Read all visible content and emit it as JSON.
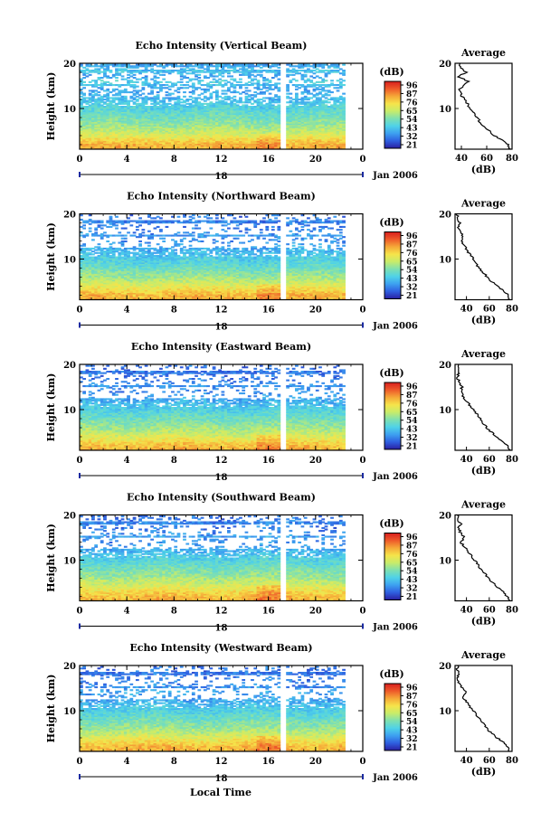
{
  "figure": {
    "footer_label": "Local Time",
    "date_label": "Jan 2006",
    "colorbar_unit": "(dB)",
    "colorbar_ticks": [
      "96",
      "87",
      "76",
      "65",
      "54",
      "43",
      "32",
      "21"
    ],
    "colorscale": [
      "#2a1fa0",
      "#2f5fe0",
      "#3da0f0",
      "#4fd2e8",
      "#7fe0b0",
      "#c8ec6a",
      "#f6e44a",
      "#f5a838",
      "#ee5a2a",
      "#d81e1e"
    ],
    "x_ticks": [
      "0",
      "4",
      "8",
      "12",
      "16",
      "20",
      "0"
    ],
    "day_label": "18",
    "y_ticks": [
      "20",
      "10"
    ],
    "ylabel": "Height (km)",
    "avg_title": "Average",
    "avg_xlabel": "(dB)",
    "avg_x_ticks": [
      "40",
      "60",
      "80"
    ],
    "avg_y_ticks": [
      "20",
      "10"
    ]
  },
  "chart_data": [
    {
      "type": "heatmap",
      "title": "Echo Intensity (Vertical Beam)",
      "xlabel": "",
      "ylabel": "Height (km)",
      "xlim": [
        0,
        24
      ],
      "ylim": [
        1,
        20
      ],
      "colorbar": {
        "unit": "(dB)",
        "range": [
          21,
          96
        ]
      },
      "data_gap_hours": [
        17.0,
        17.4
      ],
      "average_profile": {
        "xlim": [
          35,
          80
        ],
        "height_km": [
          1,
          2,
          3,
          4,
          5,
          6,
          7,
          8,
          9,
          10,
          11,
          12,
          13,
          14,
          15,
          16,
          17,
          18,
          19,
          20
        ],
        "intensity_db": [
          78,
          77,
          72,
          66,
          62,
          58,
          55,
          52,
          50,
          47,
          45,
          42,
          40,
          38,
          42,
          46,
          37,
          44,
          40,
          38
        ]
      }
    },
    {
      "type": "heatmap",
      "title": "Echo Intensity (Northward Beam)",
      "xlabel": "",
      "ylabel": "Height (km)",
      "xlim": [
        0,
        24
      ],
      "ylim": [
        1,
        20
      ],
      "colorbar": {
        "unit": "(dB)",
        "range": [
          21,
          96
        ]
      },
      "data_gap_hours": [
        17.0,
        17.4
      ],
      "average_profile": {
        "xlim": [
          30,
          80
        ],
        "height_km": [
          1,
          2,
          3,
          4,
          5,
          6,
          7,
          8,
          9,
          10,
          11,
          12,
          13,
          14,
          15,
          16,
          17,
          18,
          19,
          20
        ],
        "intensity_db": [
          78,
          77,
          72,
          67,
          62,
          58,
          55,
          51,
          48,
          46,
          43,
          40,
          38,
          35,
          37,
          35,
          33,
          34,
          32,
          32
        ]
      }
    },
    {
      "type": "heatmap",
      "title": "Echo Intensity (Eastward Beam)",
      "xlabel": "",
      "ylabel": "Height (km)",
      "xlim": [
        0,
        24
      ],
      "ylim": [
        1,
        20
      ],
      "colorbar": {
        "unit": "(dB)",
        "range": [
          21,
          96
        ]
      },
      "data_gap_hours": [
        17.0,
        17.4
      ],
      "average_profile": {
        "xlim": [
          30,
          80
        ],
        "height_km": [
          1,
          2,
          3,
          4,
          5,
          6,
          7,
          8,
          9,
          10,
          11,
          12,
          13,
          14,
          15,
          16,
          17,
          18,
          19,
          20
        ],
        "intensity_db": [
          78,
          76,
          71,
          66,
          62,
          58,
          55,
          52,
          49,
          46,
          43,
          40,
          37,
          35,
          36,
          34,
          32,
          33,
          32,
          32
        ]
      }
    },
    {
      "type": "heatmap",
      "title": "Echo Intensity (Southward Beam)",
      "xlabel": "",
      "ylabel": "Height (km)",
      "xlim": [
        0,
        24
      ],
      "ylim": [
        1,
        20
      ],
      "colorbar": {
        "unit": "(dB)",
        "range": [
          21,
          96
        ]
      },
      "data_gap_hours": [
        17.0,
        17.4
      ],
      "average_profile": {
        "xlim": [
          30,
          80
        ],
        "height_km": [
          1,
          2,
          3,
          4,
          5,
          6,
          7,
          8,
          9,
          10,
          11,
          12,
          13,
          14,
          15,
          16,
          17,
          18,
          19,
          20
        ],
        "intensity_db": [
          78,
          76,
          72,
          67,
          63,
          59,
          56,
          53,
          50,
          47,
          44,
          41,
          38,
          35,
          38,
          35,
          33,
          35,
          32,
          33
        ]
      }
    },
    {
      "type": "heatmap",
      "title": "Echo Intensity (Westward Beam)",
      "xlabel": "Local Time",
      "ylabel": "Height (km)",
      "xlim": [
        0,
        24
      ],
      "ylim": [
        1,
        20
      ],
      "colorbar": {
        "unit": "(dB)",
        "range": [
          21,
          96
        ]
      },
      "data_gap_hours": [
        17.0,
        17.4
      ],
      "average_profile": {
        "xlim": [
          30,
          80
        ],
        "height_km": [
          1,
          2,
          3,
          4,
          5,
          6,
          7,
          8,
          9,
          10,
          11,
          12,
          13,
          14,
          15,
          16,
          17,
          18,
          19,
          20
        ],
        "intensity_db": [
          78,
          77,
          72,
          67,
          62,
          58,
          55,
          52,
          49,
          46,
          43,
          40,
          37,
          40,
          36,
          34,
          32,
          33,
          32,
          32
        ]
      }
    }
  ]
}
